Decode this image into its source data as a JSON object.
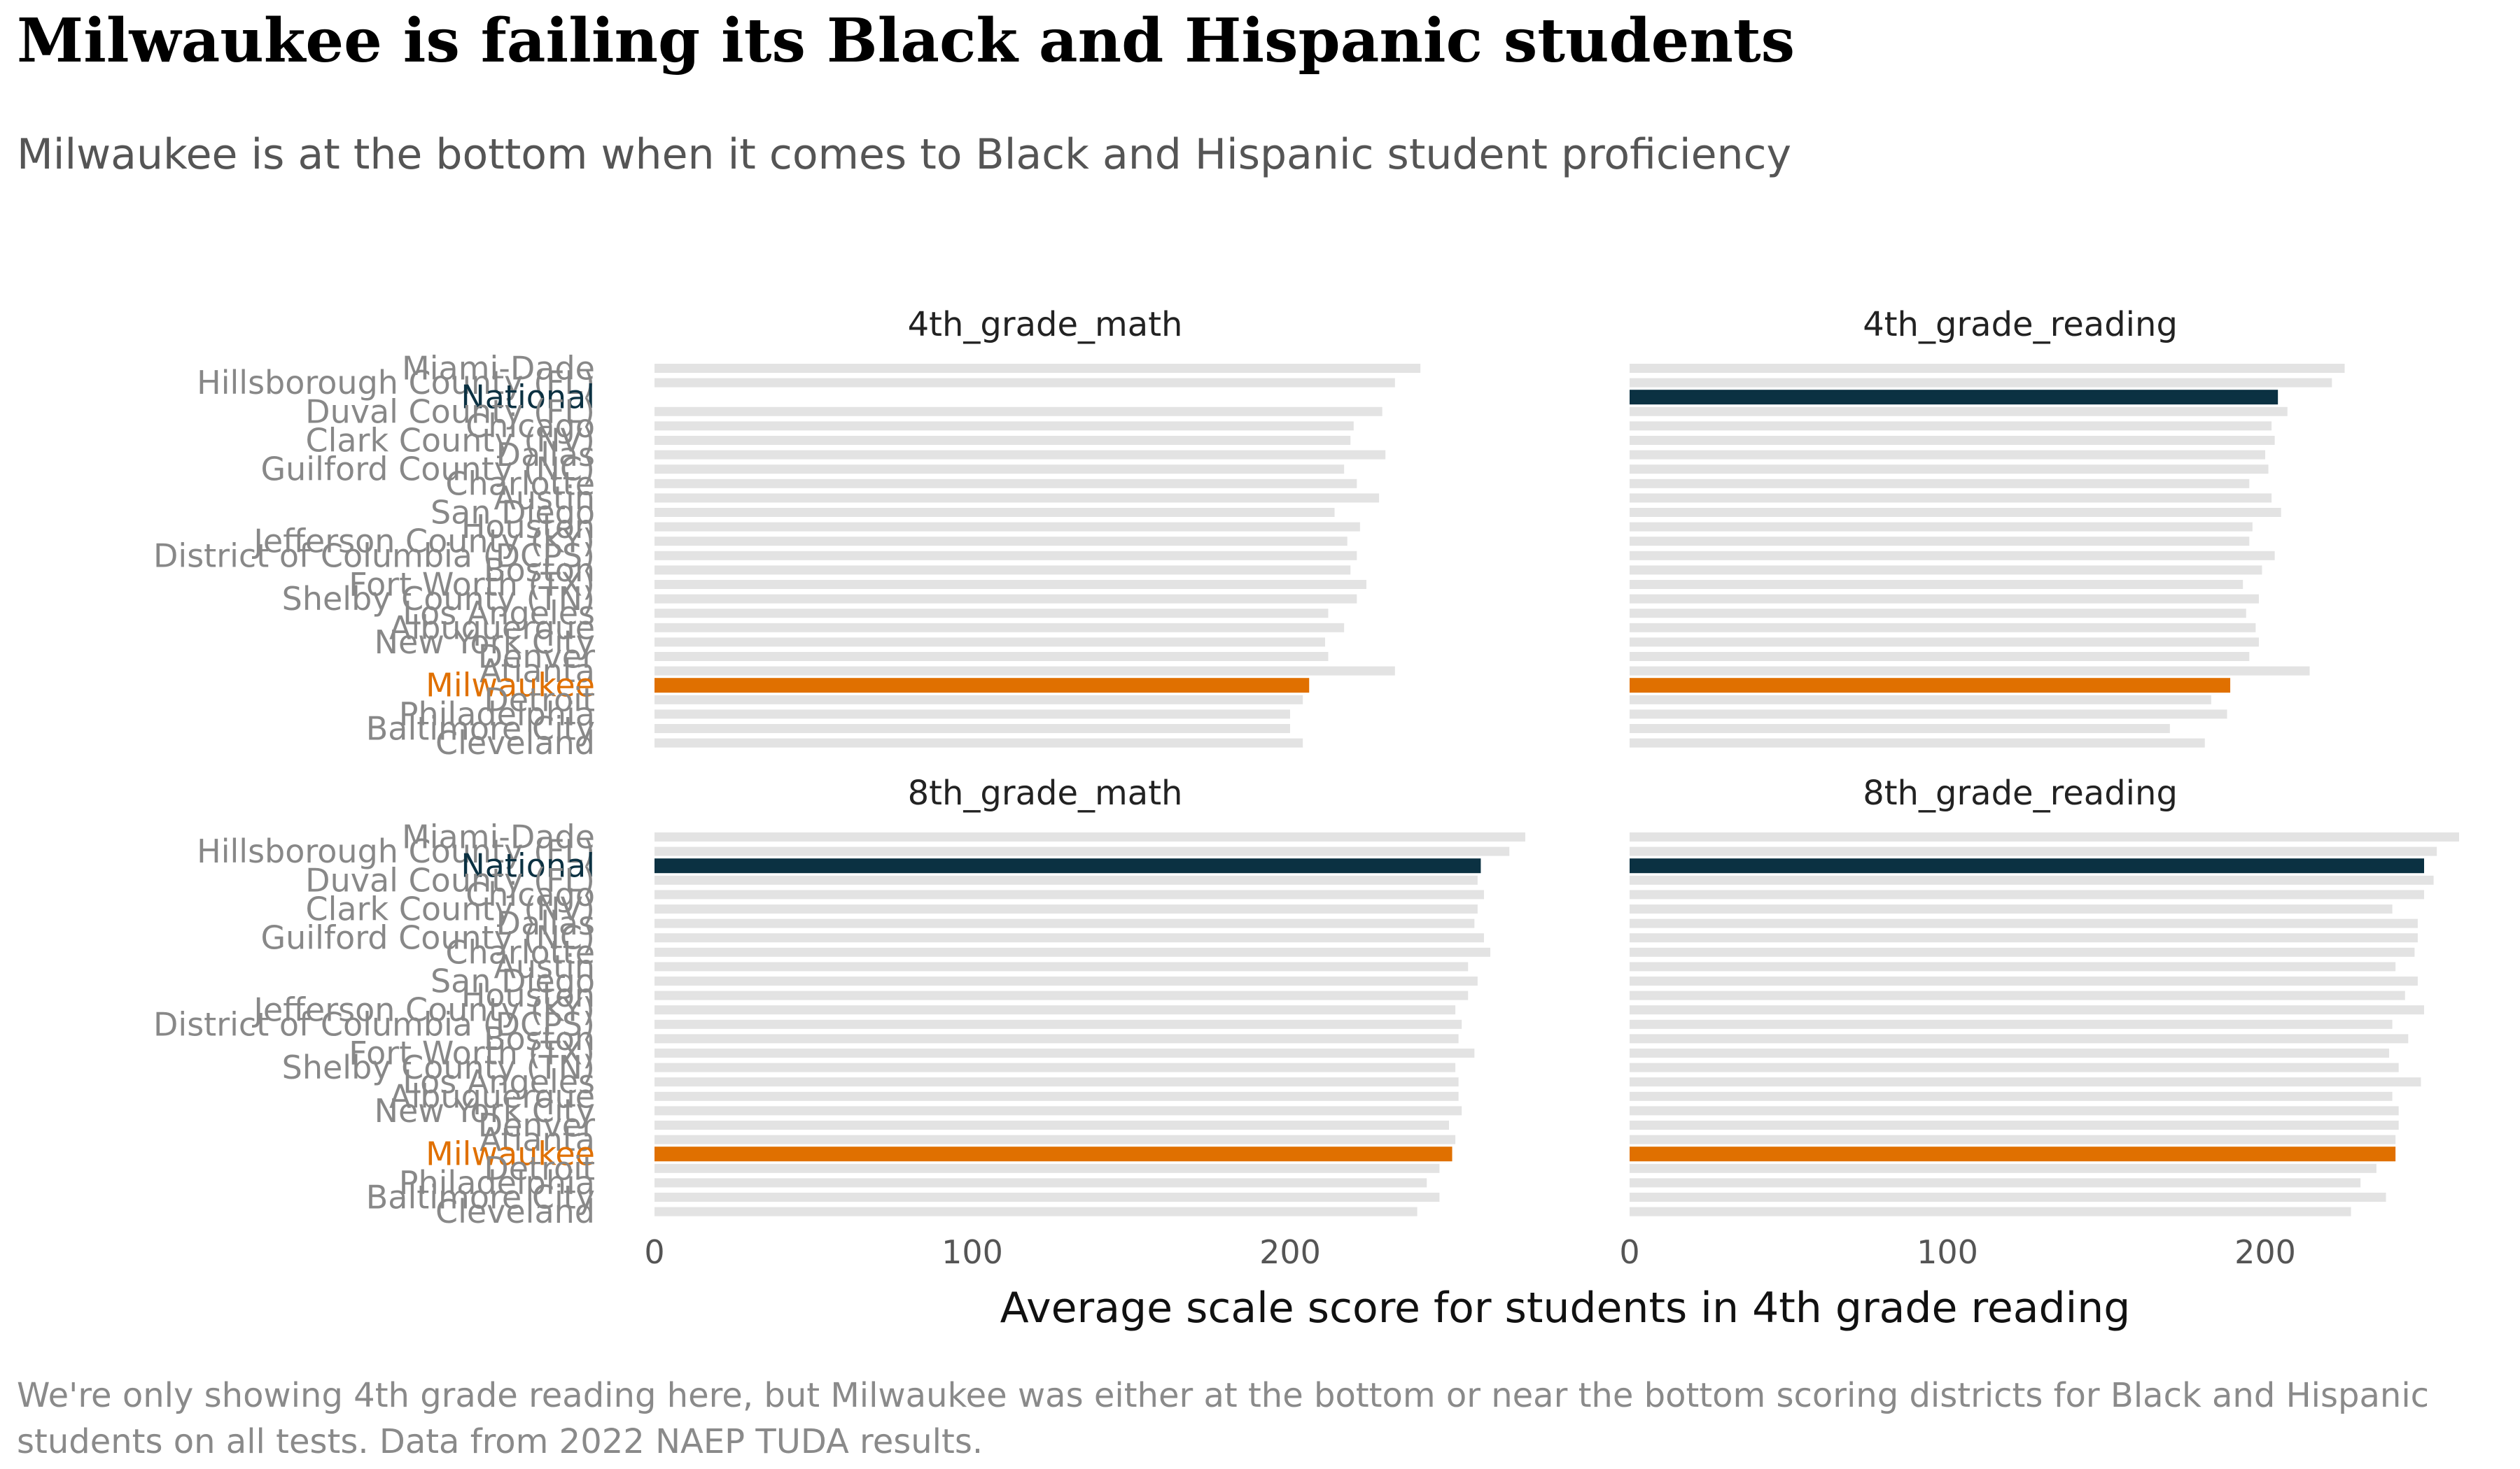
{
  "title": "Milwaukee is failing its Black and Hispanic students",
  "subtitle": "Milwaukee is at the bottom when it comes to Black and Hispanic student proficiency",
  "caption": "We're only showing 4th grade reading here, but Milwaukee was either at the bottom or near the bottom scoring districts for Black and Hispanic students on all tests. Data from 2022 NAEP TUDA results.",
  "colors": {
    "default_bar": "#e3e3e3",
    "national_bar": "#0b3142",
    "milwaukee_bar": "#e07000",
    "national_label": "#0b3142",
    "milwaukee_label": "#e07000",
    "category_label": "#888888"
  },
  "chart_data": {
    "type": "bar",
    "orientation": "horizontal",
    "facet_layout": "2x2",
    "xlabel": "Average scale score for students in 4th grade reading",
    "ylabel": "",
    "xlim": [
      0,
      270
    ],
    "xticks": [
      0,
      100,
      200
    ],
    "grid": false,
    "highlight": {
      "National": "national",
      "Milwaukee": "milwaukee"
    },
    "categories": [
      "Miami-Dade",
      "Hillsborough County (FL)",
      "National",
      "Duval County (FL)",
      "Chicago",
      "Clark County (NV)",
      "Dallas",
      "Guilford County (NC)",
      "Charlotte",
      "Austin",
      "San Diego",
      "Houston",
      "Jefferson County (KY)",
      "District of Columbia (DCPS)",
      "Boston",
      "Fort Worth (TX)",
      "Shelby County (TN)",
      "Los Angeles",
      "Albuquerque",
      "New York City",
      "Denver",
      "Atlanta",
      "Milwaukee",
      "Detroit",
      "Philadelphia",
      "Baltimore City",
      "Cleveland"
    ],
    "series": [
      {
        "name": "4th_grade_math",
        "values": [
          241,
          233,
          null,
          229,
          220,
          219,
          230,
          217,
          221,
          228,
          214,
          222,
          218,
          221,
          219,
          224,
          221,
          212,
          217,
          211,
          212,
          233,
          206,
          204,
          200,
          200,
          204
        ]
      },
      {
        "name": "4th_grade_reading",
        "values": [
          225,
          221,
          204,
          207,
          202,
          203,
          200,
          201,
          195,
          202,
          205,
          196,
          195,
          203,
          199,
          193,
          198,
          194,
          197,
          198,
          195,
          214,
          189,
          183,
          188,
          170,
          181
        ]
      },
      {
        "name": "8th_grade_math",
        "values": [
          274,
          269,
          260,
          259,
          261,
          259,
          258,
          261,
          263,
          256,
          259,
          256,
          252,
          254,
          253,
          258,
          252,
          253,
          253,
          254,
          250,
          252,
          251,
          247,
          243,
          247,
          240
        ]
      },
      {
        "name": "8th_grade_reading",
        "values": [
          261,
          254,
          250,
          253,
          250,
          240,
          248,
          248,
          247,
          241,
          248,
          244,
          250,
          240,
          245,
          239,
          242,
          249,
          240,
          242,
          242,
          241,
          241,
          235,
          230,
          238,
          227
        ]
      }
    ]
  }
}
